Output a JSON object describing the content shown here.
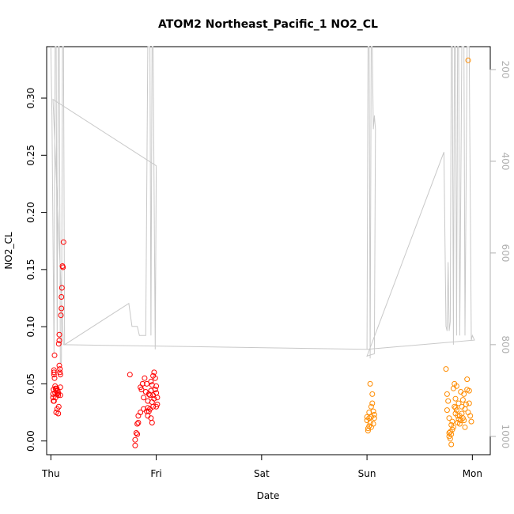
{
  "chart_data": {
    "type": "scatter",
    "title": "ATOM2 Northeast_Pacific_1 NO2_CL",
    "xlabel": "Date",
    "ylabel": "NO2_CL",
    "x_ticks": [
      "Thu",
      "Fri",
      "Sat",
      "Sun",
      "Mon"
    ],
    "y_ticks": [
      "0.00",
      "0.05",
      "0.10",
      "0.15",
      "0.20",
      "0.25",
      "0.30"
    ],
    "y_tick_values": [
      0.0,
      0.05,
      0.1,
      0.15,
      0.2,
      0.25,
      0.3
    ],
    "ylim": [
      -0.012,
      0.345
    ],
    "y2_ticks": [
      "200",
      "400",
      "600",
      "800",
      "1000"
    ],
    "y2_tick_values": [
      200,
      400,
      600,
      800,
      1000
    ],
    "y2lim": [
      1040,
      150
    ],
    "xlim": [
      -0.04,
      4.17
    ],
    "grid": false,
    "colors": {
      "series1": "#ff0000",
      "series2": "#ff8c00",
      "pressure": "#c8c8c8"
    },
    "series": [
      {
        "color": "#ff0000",
        "points": [
          [
            0.02,
            0.041
          ],
          [
            0.02,
            0.038
          ],
          [
            0.025,
            0.045
          ],
          [
            0.025,
            0.035
          ],
          [
            0.03,
            0.058
          ],
          [
            0.03,
            0.062
          ],
          [
            0.03,
            0.06
          ],
          [
            0.035,
            0.055
          ],
          [
            0.035,
            0.075
          ],
          [
            0.04,
            0.048
          ],
          [
            0.04,
            0.042
          ],
          [
            0.045,
            0.038
          ],
          [
            0.05,
            0.025
          ],
          [
            0.05,
            0.044
          ],
          [
            0.055,
            0.046
          ],
          [
            0.06,
            0.028
          ],
          [
            0.06,
            0.041
          ],
          [
            0.065,
            0.044
          ],
          [
            0.07,
            0.04
          ],
          [
            0.07,
            0.024
          ],
          [
            0.075,
            0.03
          ],
          [
            0.075,
            0.085
          ],
          [
            0.08,
            0.088
          ],
          [
            0.08,
            0.093
          ],
          [
            0.08,
            0.066
          ],
          [
            0.085,
            0.06
          ],
          [
            0.085,
            0.063
          ],
          [
            0.09,
            0.047
          ],
          [
            0.09,
            0.058
          ],
          [
            0.09,
            0.04
          ],
          [
            0.095,
            0.11
          ],
          [
            0.1,
            0.116
          ],
          [
            0.1,
            0.126
          ],
          [
            0.105,
            0.134
          ],
          [
            0.11,
            0.153
          ],
          [
            0.115,
            0.152
          ],
          [
            0.12,
            0.174
          ],
          [
            0.03,
            0.035
          ],
          [
            0.045,
            0.046
          ],
          [
            0.07,
            0.042
          ],
          [
            0.75,
            0.058
          ],
          [
            0.8,
            -0.004
          ],
          [
            0.8,
            0.001
          ],
          [
            0.81,
            0.007
          ],
          [
            0.82,
            0.006
          ],
          [
            0.82,
            0.015
          ],
          [
            0.83,
            0.022
          ],
          [
            0.83,
            0.016
          ],
          [
            0.85,
            0.025
          ],
          [
            0.85,
            0.047
          ],
          [
            0.86,
            0.045
          ],
          [
            0.87,
            0.05
          ],
          [
            0.88,
            0.028
          ],
          [
            0.88,
            0.038
          ],
          [
            0.89,
            0.055
          ],
          [
            0.9,
            0.043
          ],
          [
            0.91,
            0.026
          ],
          [
            0.91,
            0.05
          ],
          [
            0.92,
            0.022
          ],
          [
            0.92,
            0.035
          ],
          [
            0.93,
            0.026
          ],
          [
            0.93,
            0.041
          ],
          [
            0.94,
            0.04
          ],
          [
            0.94,
            0.028
          ],
          [
            0.95,
            0.044
          ],
          [
            0.95,
            0.052
          ],
          [
            0.96,
            0.049
          ],
          [
            0.96,
            0.034
          ],
          [
            0.97,
            0.04
          ],
          [
            0.97,
            0.057
          ],
          [
            0.97,
            0.03
          ],
          [
            0.98,
            0.06
          ],
          [
            0.98,
            0.037
          ],
          [
            0.99,
            0.045
          ],
          [
            0.99,
            0.055
          ],
          [
            1.0,
            0.03
          ],
          [
            1.0,
            0.042
          ],
          [
            1.0,
            0.048
          ],
          [
            1.01,
            0.032
          ],
          [
            1.01,
            0.038
          ],
          [
            0.95,
            0.02
          ],
          [
            0.96,
            0.016
          ],
          [
            0.92,
            0.029
          ]
        ]
      },
      {
        "color": "#ff8c00",
        "points": [
          [
            3.0,
            0.021
          ],
          [
            3.0,
            0.018
          ],
          [
            3.01,
            0.011
          ],
          [
            3.01,
            0.009
          ],
          [
            3.02,
            0.013
          ],
          [
            3.02,
            0.025
          ],
          [
            3.03,
            0.05
          ],
          [
            3.03,
            0.016
          ],
          [
            3.04,
            0.021
          ],
          [
            3.04,
            0.03
          ],
          [
            3.05,
            0.033
          ],
          [
            3.05,
            0.041
          ],
          [
            3.06,
            0.026
          ],
          [
            3.06,
            0.015
          ],
          [
            3.07,
            0.02
          ],
          [
            3.07,
            0.023
          ],
          [
            3.02,
            0.02
          ],
          [
            3.04,
            0.012
          ],
          [
            3.75,
            0.063
          ],
          [
            3.76,
            0.041
          ],
          [
            3.76,
            0.027
          ],
          [
            3.77,
            0.035
          ],
          [
            3.78,
            0.02
          ],
          [
            3.78,
            0.004
          ],
          [
            3.79,
            0.008
          ],
          [
            3.79,
            0.002
          ],
          [
            3.8,
            -0.003
          ],
          [
            3.8,
            0.006
          ],
          [
            3.81,
            0.01
          ],
          [
            3.81,
            0.017
          ],
          [
            3.82,
            0.012
          ],
          [
            3.82,
            0.046
          ],
          [
            3.83,
            0.03
          ],
          [
            3.83,
            0.05
          ],
          [
            3.84,
            0.024
          ],
          [
            3.84,
            0.037
          ],
          [
            3.85,
            0.048
          ],
          [
            3.85,
            0.027
          ],
          [
            3.86,
            0.016
          ],
          [
            3.86,
            0.022
          ],
          [
            3.87,
            0.019
          ],
          [
            3.87,
            0.033
          ],
          [
            3.88,
            0.015
          ],
          [
            3.88,
            0.022
          ],
          [
            3.89,
            0.043
          ],
          [
            3.89,
            0.018
          ],
          [
            3.9,
            0.03
          ],
          [
            3.9,
            0.024
          ],
          [
            3.91,
            0.036
          ],
          [
            3.91,
            0.02
          ],
          [
            3.92,
            0.018
          ],
          [
            3.92,
            0.041
          ],
          [
            3.93,
            0.028
          ],
          [
            3.93,
            0.012
          ],
          [
            3.94,
            0.032
          ],
          [
            3.95,
            0.054
          ],
          [
            3.95,
            0.045
          ],
          [
            3.96,
            0.025
          ],
          [
            3.97,
            0.033
          ],
          [
            3.97,
            0.044
          ],
          [
            3.98,
            0.022
          ],
          [
            3.99,
            0.017
          ],
          [
            3.96,
            0.333
          ],
          [
            3.78,
            0.007
          ],
          [
            3.8,
            0.014
          ],
          [
            3.84,
            0.029
          ]
        ]
      }
    ],
    "pressure_line": [
      [
        0.0,
        150
      ],
      [
        0.01,
        300
      ],
      [
        0.03,
        820
      ],
      [
        0.04,
        150
      ],
      [
        0.05,
        150
      ],
      [
        0.06,
        780
      ],
      [
        0.07,
        150
      ],
      [
        0.08,
        150
      ],
      [
        0.09,
        840
      ],
      [
        0.1,
        840
      ],
      [
        0.11,
        150
      ],
      [
        0.12,
        150
      ],
      [
        0.13,
        800
      ],
      [
        0.74,
        710
      ],
      [
        0.77,
        760
      ],
      [
        0.82,
        760
      ],
      [
        0.84,
        780
      ],
      [
        0.86,
        780
      ],
      [
        0.9,
        780
      ],
      [
        0.92,
        150
      ],
      [
        0.94,
        150
      ],
      [
        0.95,
        780
      ],
      [
        0.96,
        150
      ],
      [
        0.97,
        150
      ],
      [
        0.99,
        810
      ],
      [
        1.0,
        410
      ],
      [
        0.02,
        265
      ],
      [
        0.12,
        800
      ],
      [
        3.0,
        810
      ],
      [
        3.01,
        150
      ],
      [
        3.02,
        150
      ],
      [
        3.03,
        830
      ],
      [
        3.04,
        150
      ],
      [
        3.05,
        150
      ],
      [
        3.06,
        330
      ],
      [
        3.07,
        300
      ],
      [
        3.08,
        330
      ],
      [
        3.07,
        820
      ],
      [
        3.0,
        825
      ],
      [
        3.73,
        380
      ],
      [
        3.75,
        760
      ],
      [
        3.76,
        770
      ],
      [
        3.77,
        620
      ],
      [
        3.78,
        770
      ],
      [
        3.79,
        750
      ],
      [
        3.8,
        150
      ],
      [
        3.81,
        150
      ],
      [
        3.82,
        800
      ],
      [
        3.83,
        150
      ],
      [
        3.84,
        150
      ],
      [
        3.85,
        780
      ],
      [
        3.86,
        150
      ],
      [
        3.87,
        150
      ],
      [
        3.88,
        780
      ],
      [
        3.9,
        150
      ],
      [
        3.92,
        150
      ],
      [
        3.93,
        780
      ],
      [
        3.95,
        150
      ],
      [
        3.97,
        150
      ],
      [
        3.99,
        790
      ],
      [
        4.0,
        780
      ],
      [
        4.02,
        790
      ],
      [
        3.0,
        810
      ]
    ]
  }
}
